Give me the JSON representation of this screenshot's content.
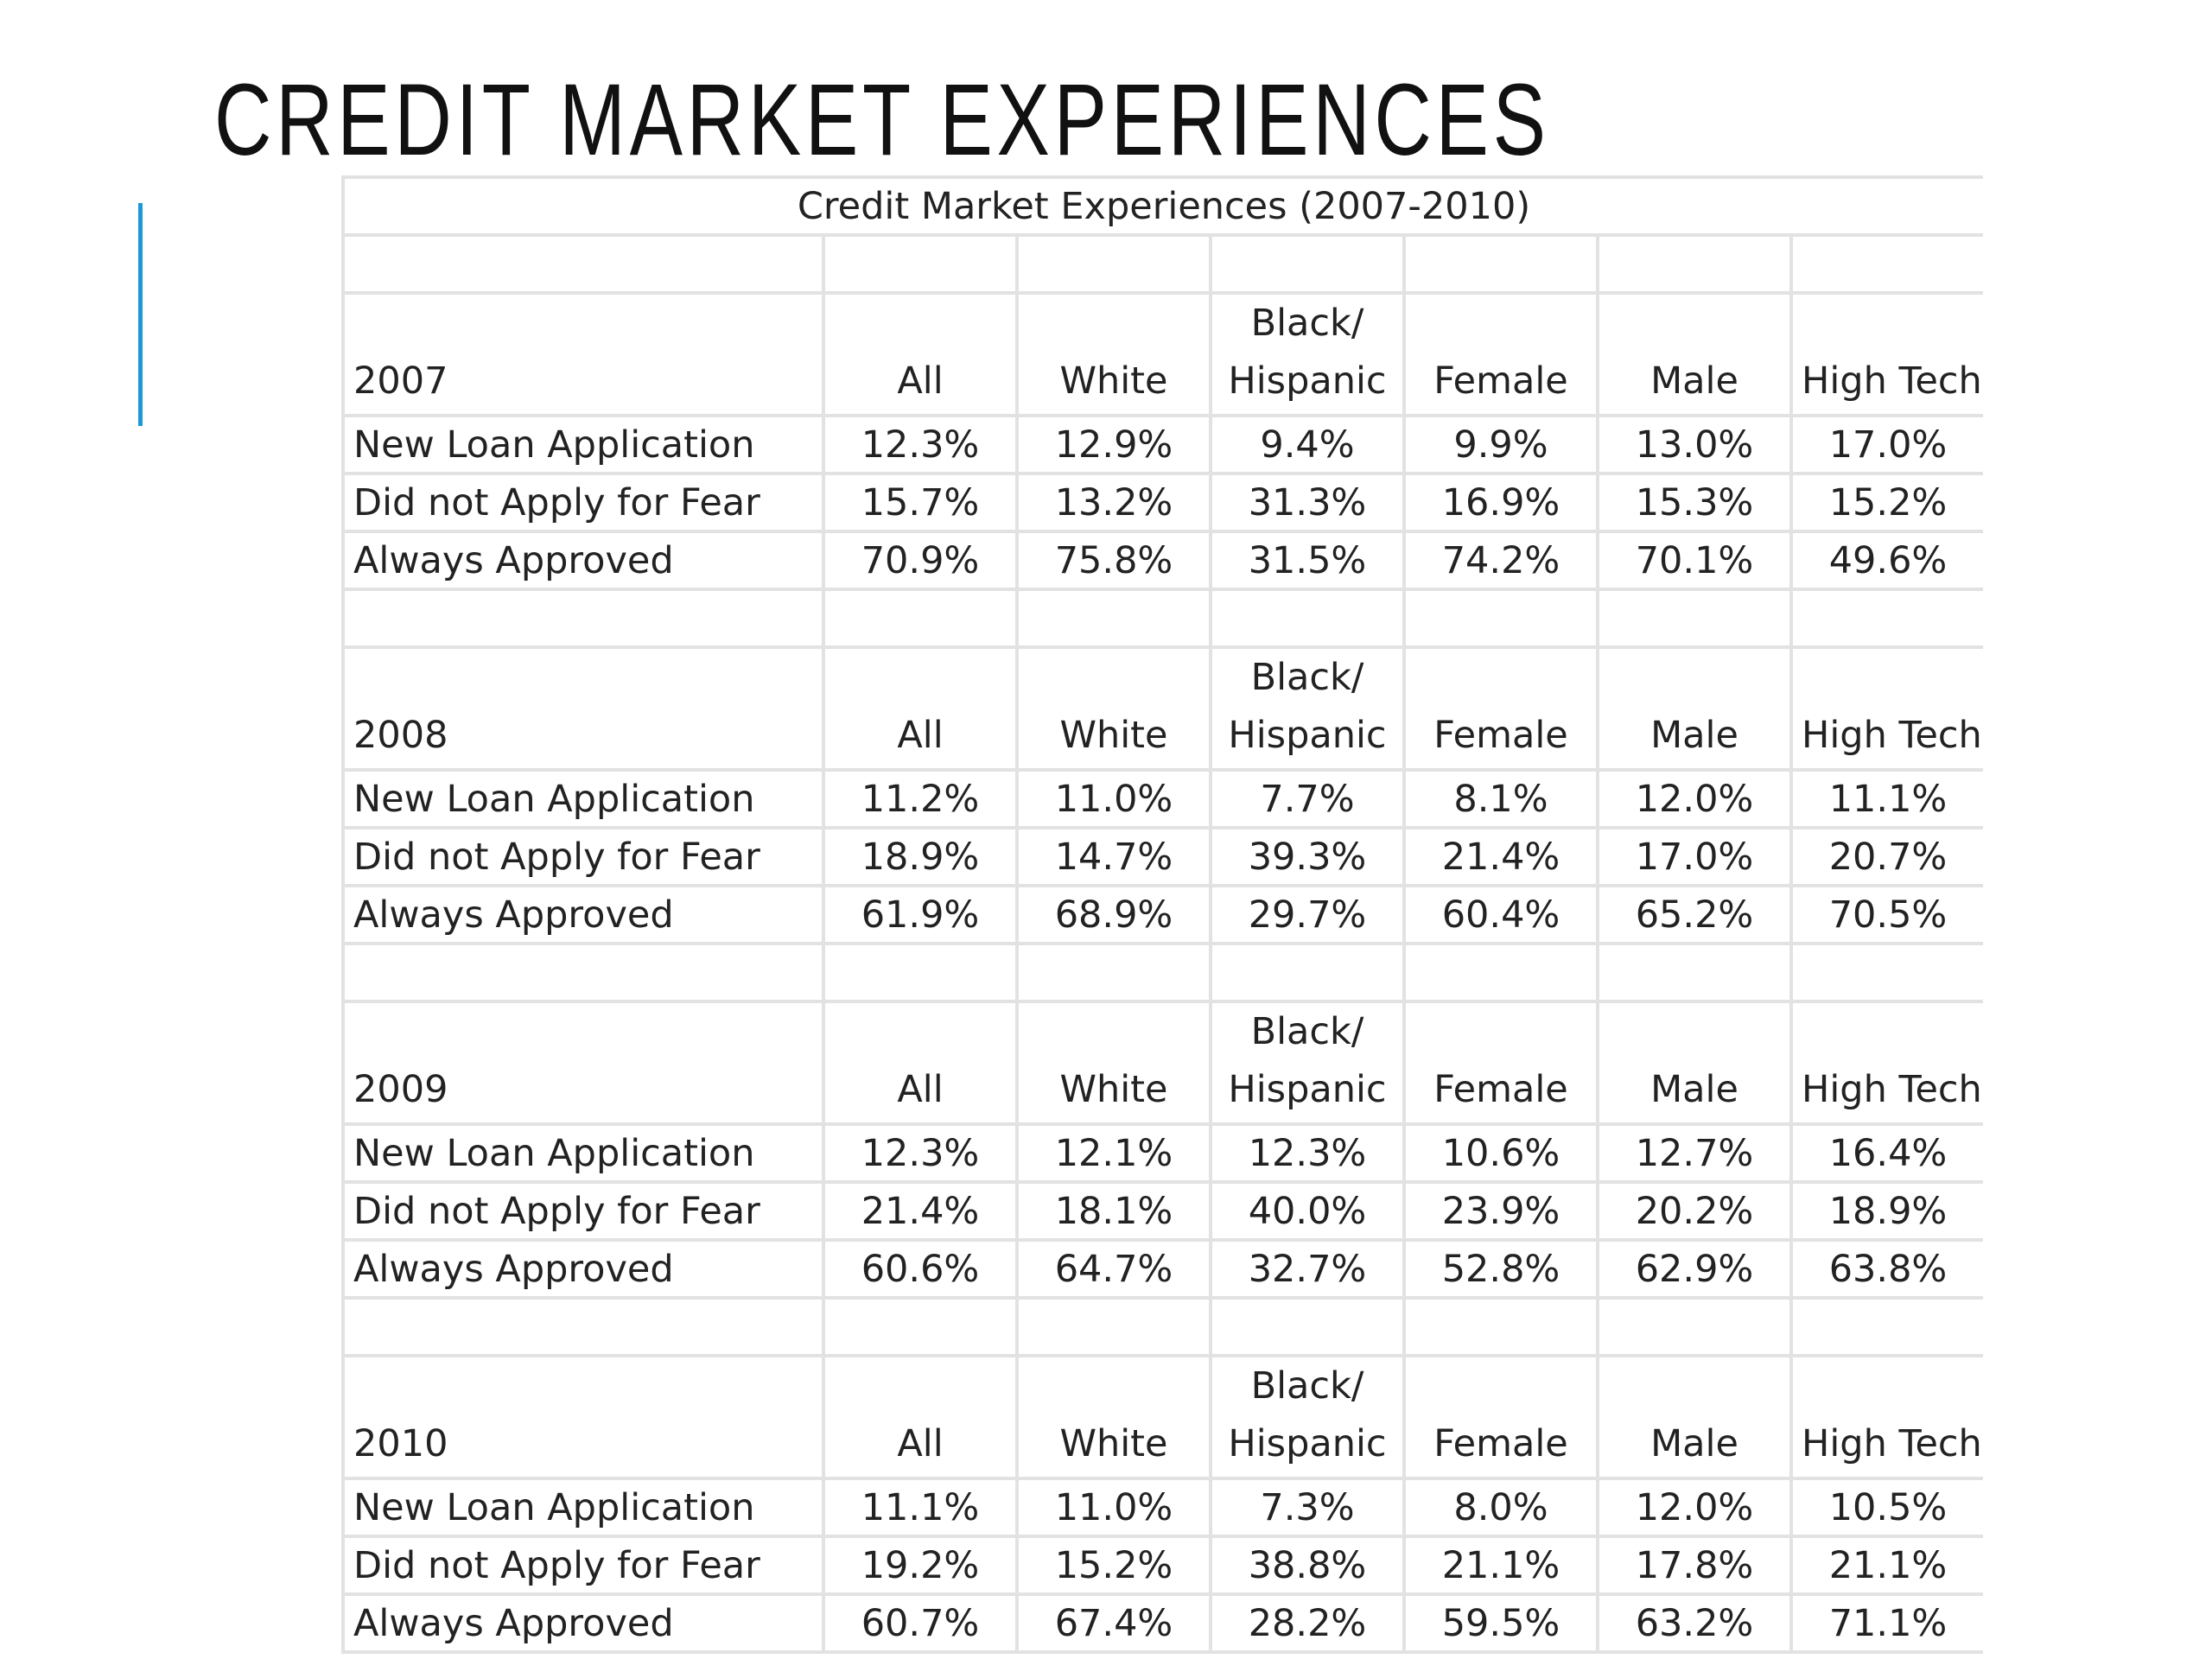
{
  "slide": {
    "title": "CREDIT MARKET EXPERIENCES"
  },
  "table": {
    "caption": "Credit Market Experiences (2007-2010)",
    "columns": [
      "All",
      "White",
      "Black/ Hispanic",
      "Female",
      "Male",
      "High Tech"
    ],
    "column_parts": {
      "all": "All",
      "white": "White",
      "black_line1": "Black/",
      "black_line2": "Hispanic",
      "female": "Female",
      "male": "Male",
      "hightech": "High Tech"
    },
    "sections": [
      {
        "year": "2007",
        "rows": [
          {
            "label": "New Loan Application",
            "values": [
              "12.3%",
              "12.9%",
              "9.4%",
              "9.9%",
              "13.0%",
              "17.0%"
            ]
          },
          {
            "label": "Did not Apply for Fear",
            "values": [
              "15.7%",
              "13.2%",
              "31.3%",
              "16.9%",
              "15.3%",
              "15.2%"
            ]
          },
          {
            "label": "Always Approved",
            "values": [
              "70.9%",
              "75.8%",
              "31.5%",
              "74.2%",
              "70.1%",
              "49.6%"
            ]
          }
        ]
      },
      {
        "year": "2008",
        "rows": [
          {
            "label": "New Loan Application",
            "values": [
              "11.2%",
              "11.0%",
              "7.7%",
              "8.1%",
              "12.0%",
              "11.1%"
            ]
          },
          {
            "label": "Did not Apply for Fear",
            "values": [
              "18.9%",
              "14.7%",
              "39.3%",
              "21.4%",
              "17.0%",
              "20.7%"
            ]
          },
          {
            "label": "Always Approved",
            "values": [
              "61.9%",
              "68.9%",
              "29.7%",
              "60.4%",
              "65.2%",
              "70.5%"
            ]
          }
        ]
      },
      {
        "year": "2009",
        "rows": [
          {
            "label": "New Loan Application",
            "values": [
              "12.3%",
              "12.1%",
              "12.3%",
              "10.6%",
              "12.7%",
              "16.4%"
            ]
          },
          {
            "label": "Did not Apply for Fear",
            "values": [
              "21.4%",
              "18.1%",
              "40.0%",
              "23.9%",
              "20.2%",
              "18.9%"
            ]
          },
          {
            "label": "Always Approved",
            "values": [
              "60.6%",
              "64.7%",
              "32.7%",
              "52.8%",
              "62.9%",
              "63.8%"
            ]
          }
        ]
      },
      {
        "year": "2010",
        "rows": [
          {
            "label": "New Loan Application",
            "values": [
              "11.1%",
              "11.0%",
              "7.3%",
              "8.0%",
              "12.0%",
              "10.5%"
            ]
          },
          {
            "label": "Did not Apply for Fear",
            "values": [
              "19.2%",
              "15.2%",
              "38.8%",
              "21.1%",
              "17.8%",
              "21.1%"
            ]
          },
          {
            "label": "Always Approved",
            "values": [
              "60.7%",
              "67.4%",
              "28.2%",
              "59.5%",
              "63.2%",
              "71.1%"
            ]
          }
        ]
      }
    ]
  },
  "colors": {
    "accent": "#1d9ad6",
    "grid": "#e2e2e2",
    "text": "#222222"
  }
}
